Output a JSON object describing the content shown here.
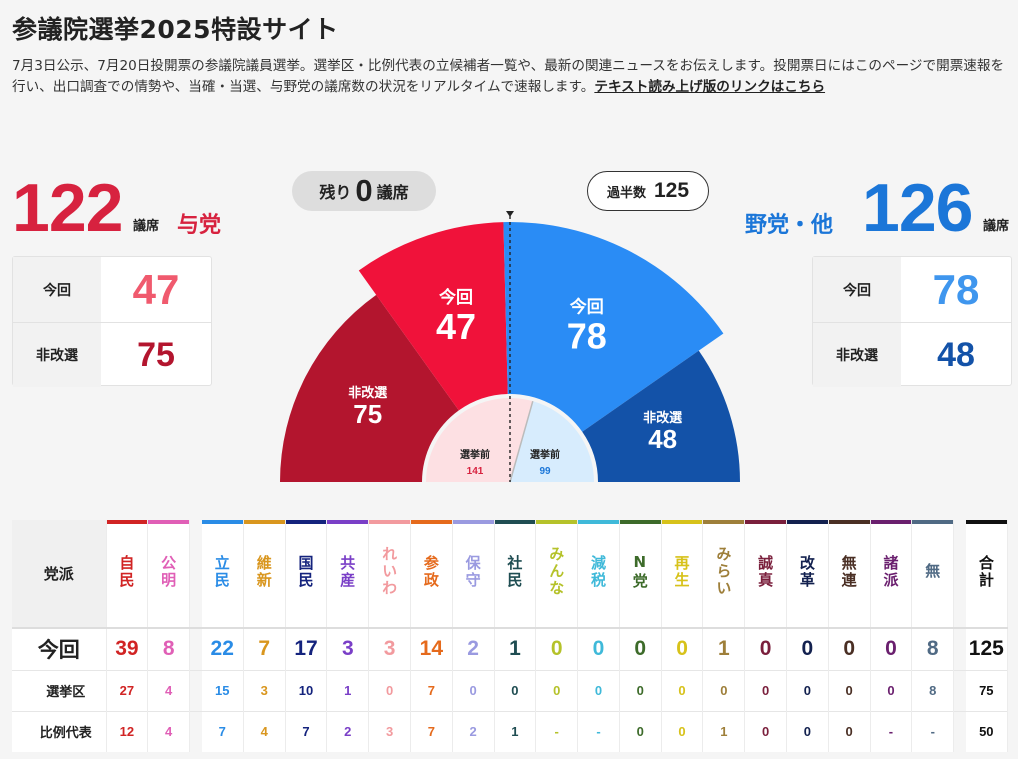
{
  "title": "参議院選挙2025特設サイト",
  "description": "7月3日公示、7月20日投開票の参議院議員選挙。選挙区・比例代表の立候補者一覧や、最新の関連ニュースをお伝えします。投開票日にはこのページで開票速報を行い、出口調査での情勢や、当確・当選、与野党の議席数の状況をリアルタイムで速報します。",
  "description_link": "テキスト読み上げ版のリンクはこちら",
  "ruling": {
    "total": "122",
    "unit": "議席",
    "label": "与党",
    "this_time_label": "今回",
    "this_time": "47",
    "not_up_label": "非改選",
    "not_up": "75",
    "color_main": "#d7223f",
    "color_light": "#f05a6e"
  },
  "opposition": {
    "total": "126",
    "unit": "議席",
    "label": "野党・他",
    "this_time_label": "今回",
    "this_time": "78",
    "not_up_label": "非改選",
    "not_up": "48",
    "color_main": "#1b76d8",
    "color_light": "#3f96ee",
    "color_dark": "#1352a8"
  },
  "remaining": {
    "prefix": "残り",
    "value": "0",
    "suffix": "議席"
  },
  "majority": {
    "label": "過半数",
    "value": "125"
  },
  "chart_data": {
    "type": "pie",
    "title": "",
    "total_seats": 248,
    "majority": 125,
    "remaining": 0,
    "series": [
      {
        "name": "与党 今回",
        "label": "今回",
        "value": 47,
        "color": "#f0123a"
      },
      {
        "name": "与党 非改選",
        "label": "非改選",
        "value": 75,
        "color": "#b3152e"
      },
      {
        "name": "野党・他 今回",
        "label": "今回",
        "value": 78,
        "color": "#2a8cf5"
      },
      {
        "name": "野党・他 非改選",
        "label": "非改選",
        "value": 48,
        "color": "#1352a8"
      }
    ],
    "before_election": {
      "label": "選挙前",
      "ruling": 141,
      "opposition": 99
    }
  },
  "table": {
    "header_label": "党派",
    "rows": [
      {
        "label": "今回",
        "key": "this_time"
      },
      {
        "label": "選挙区",
        "key": "district"
      },
      {
        "label": "比例代表",
        "key": "pr"
      }
    ],
    "parties": [
      {
        "name": "自民",
        "color": "#d12424",
        "this_time": "39",
        "district": "27",
        "pr": "12",
        "group": "ruling"
      },
      {
        "name": "公明",
        "color": "#e05fb6",
        "this_time": "8",
        "district": "4",
        "pr": "4",
        "group": "ruling"
      },
      {
        "name": "立民",
        "color": "#2a8ce6",
        "this_time": "22",
        "district": "15",
        "pr": "7",
        "group": "opp"
      },
      {
        "name": "維新",
        "color": "#d9961e",
        "this_time": "7",
        "district": "3",
        "pr": "4",
        "group": "opp"
      },
      {
        "name": "国民",
        "color": "#14237d",
        "this_time": "17",
        "district": "10",
        "pr": "7",
        "group": "opp"
      },
      {
        "name": "共産",
        "color": "#7a3fc7",
        "this_time": "3",
        "district": "1",
        "pr": "2",
        "group": "opp"
      },
      {
        "name": "れいわ",
        "color": "#f29a9e",
        "this_time": "3",
        "district": "0",
        "pr": "3",
        "group": "opp"
      },
      {
        "name": "参政",
        "color": "#e56a1c",
        "this_time": "14",
        "district": "7",
        "pr": "7",
        "group": "opp"
      },
      {
        "name": "保守",
        "color": "#9a9ae0",
        "this_time": "2",
        "district": "0",
        "pr": "2",
        "group": "opp"
      },
      {
        "name": "社民",
        "color": "#1f4d52",
        "this_time": "1",
        "district": "0",
        "pr": "1",
        "group": "opp"
      },
      {
        "name": "みんな",
        "color": "#b5c22a",
        "this_time": "0",
        "district": "0",
        "pr": "-",
        "group": "opp"
      },
      {
        "name": "減税",
        "color": "#3fb9d9",
        "this_time": "0",
        "district": "0",
        "pr": "-",
        "group": "opp"
      },
      {
        "name": "N党",
        "color": "#3d6b2a",
        "this_time": "0",
        "district": "0",
        "pr": "0",
        "group": "opp"
      },
      {
        "name": "再生",
        "color": "#d7c21a",
        "this_time": "0",
        "district": "0",
        "pr": "0",
        "group": "opp"
      },
      {
        "name": "みらい",
        "color": "#9e7f3a",
        "this_time": "1",
        "district": "0",
        "pr": "1",
        "group": "opp"
      },
      {
        "name": "誠真",
        "color": "#7a1f3c",
        "this_time": "0",
        "district": "0",
        "pr": "0",
        "group": "opp"
      },
      {
        "name": "改革",
        "color": "#13214f",
        "this_time": "0",
        "district": "0",
        "pr": "0",
        "group": "opp"
      },
      {
        "name": "無連",
        "color": "#4a2f24",
        "this_time": "0",
        "district": "0",
        "pr": "0",
        "group": "opp"
      },
      {
        "name": "諸派",
        "color": "#6a1f6e",
        "this_time": "0",
        "district": "0",
        "pr": "-",
        "group": "opp"
      },
      {
        "name": "無",
        "color": "#506a84",
        "this_time": "8",
        "district": "8",
        "pr": "-",
        "group": "opp"
      }
    ],
    "total": {
      "name": "合計",
      "color": "#111111",
      "this_time": "125",
      "district": "75",
      "pr": "50"
    }
  }
}
